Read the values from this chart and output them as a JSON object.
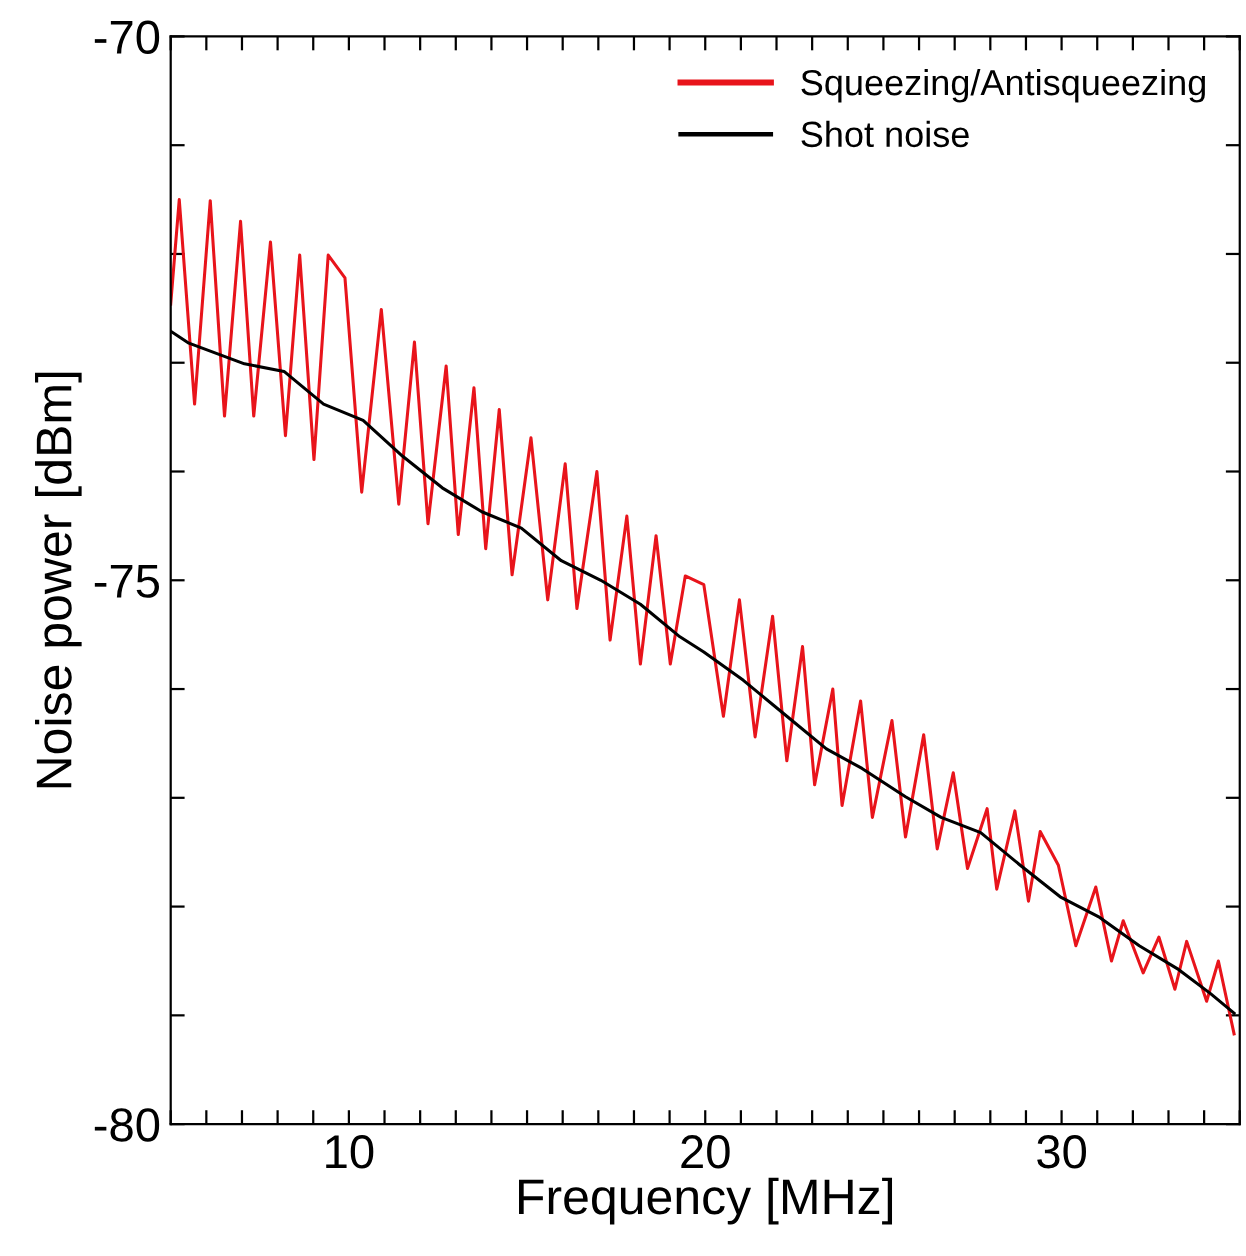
{
  "chart_data": {
    "type": "line",
    "xlabel": "Frequency [MHz]",
    "ylabel": "Noise power [dBm]",
    "xlim": [
      5,
      35
    ],
    "ylim": [
      -80,
      -70
    ],
    "xticks": [
      {
        "value": 5,
        "label": null
      },
      {
        "value": 6,
        "label": null
      },
      {
        "value": 7,
        "label": null
      },
      {
        "value": 8,
        "label": null
      },
      {
        "value": 9,
        "label": null
      },
      10,
      {
        "value": 11,
        "label": null
      },
      {
        "value": 12,
        "label": null
      },
      {
        "value": 13,
        "label": null
      },
      {
        "value": 14,
        "label": null
      },
      {
        "value": 15,
        "label": null
      },
      {
        "value": 16,
        "label": null
      },
      {
        "value": 17,
        "label": null
      },
      {
        "value": 18,
        "label": null
      },
      {
        "value": 19,
        "label": null
      },
      20,
      {
        "value": 21,
        "label": null
      },
      {
        "value": 22,
        "label": null
      },
      {
        "value": 23,
        "label": null
      },
      {
        "value": 24,
        "label": null
      },
      {
        "value": 25,
        "label": null
      },
      {
        "value": 26,
        "label": null
      },
      {
        "value": 27,
        "label": null
      },
      {
        "value": 28,
        "label": null
      },
      {
        "value": 29,
        "label": null
      },
      30,
      {
        "value": 31,
        "label": null
      },
      {
        "value": 32,
        "label": null
      },
      {
        "value": 33,
        "label": null
      },
      {
        "value": 34,
        "label": null
      },
      {
        "value": 35,
        "label": null
      }
    ],
    "yticks": [
      -80,
      {
        "value": -79,
        "label": null
      },
      {
        "value": -78,
        "label": null
      },
      {
        "value": -77,
        "label": null
      },
      {
        "value": -76,
        "label": null
      },
      -75,
      {
        "value": -74,
        "label": null
      },
      {
        "value": -73,
        "label": null
      },
      {
        "value": -72,
        "label": null
      },
      {
        "value": -71,
        "label": null
      },
      -70
    ],
    "legend": "top right",
    "series": [
      {
        "name": "Squeezing/Antisqueezing",
        "color": "#e8141b",
        "x": [
          5.0,
          5.24,
          5.67,
          6.11,
          6.51,
          6.96,
          7.33,
          7.8,
          8.22,
          8.62,
          9.02,
          9.42,
          9.89,
          10.36,
          10.91,
          11.4,
          11.84,
          12.22,
          12.73,
          13.07,
          13.51,
          13.84,
          14.22,
          14.58,
          15.11,
          15.58,
          16.07,
          16.4,
          16.96,
          17.33,
          17.8,
          18.18,
          18.62,
          19.02,
          19.44,
          19.96,
          20.51,
          20.96,
          21.4,
          21.89,
          22.29,
          22.73,
          23.07,
          23.58,
          23.84,
          24.36,
          24.69,
          25.24,
          25.62,
          26.13,
          26.51,
          26.96,
          27.36,
          27.91,
          28.18,
          28.69,
          29.07,
          29.4,
          29.91,
          30.4,
          30.96,
          31.4,
          31.73,
          32.29,
          32.73,
          33.18,
          33.51,
          34.07,
          34.4,
          34.84
        ],
        "values": [
          -72.46,
          -71.5,
          -73.38,
          -71.51,
          -73.49,
          -71.7,
          -73.49,
          -71.89,
          -73.67,
          -72.01,
          -73.89,
          -72.01,
          -72.22,
          -74.19,
          -72.51,
          -74.3,
          -72.81,
          -74.48,
          -73.03,
          -74.58,
          -73.23,
          -74.71,
          -73.43,
          -74.95,
          -73.69,
          -75.18,
          -73.93,
          -75.26,
          -74.0,
          -75.55,
          -74.41,
          -75.77,
          -74.59,
          -75.77,
          -74.96,
          -75.04,
          -76.25,
          -75.18,
          -76.44,
          -75.33,
          -76.66,
          -75.61,
          -76.88,
          -76.0,
          -77.07,
          -76.11,
          -77.18,
          -76.29,
          -77.36,
          -76.42,
          -77.47,
          -76.77,
          -77.65,
          -77.1,
          -77.84,
          -77.12,
          -77.95,
          -77.31,
          -77.62,
          -78.36,
          -77.82,
          -78.5,
          -78.13,
          -78.61,
          -78.28,
          -78.76,
          -78.32,
          -78.87,
          -78.5,
          -79.17
        ]
      },
      {
        "name": "Shot noise",
        "color": "#000000",
        "x": [
          5.0,
          5.51,
          7.07,
          8.18,
          9.29,
          10.4,
          11.51,
          12.62,
          13.73,
          14.84,
          15.96,
          17.07,
          18.18,
          19.29,
          19.96,
          21.07,
          22.29,
          23.4,
          24.4,
          25.62,
          26.62,
          27.73,
          28.84,
          29.96,
          31.07,
          32.18,
          33.29,
          34.18,
          34.84
        ],
        "values": [
          -72.71,
          -72.82,
          -73.01,
          -73.08,
          -73.38,
          -73.53,
          -73.86,
          -74.15,
          -74.37,
          -74.52,
          -74.82,
          -75.0,
          -75.22,
          -75.52,
          -75.66,
          -75.92,
          -76.25,
          -76.55,
          -76.73,
          -76.99,
          -77.18,
          -77.32,
          -77.62,
          -77.91,
          -78.1,
          -78.36,
          -78.58,
          -78.8,
          -78.98
        ]
      }
    ]
  }
}
